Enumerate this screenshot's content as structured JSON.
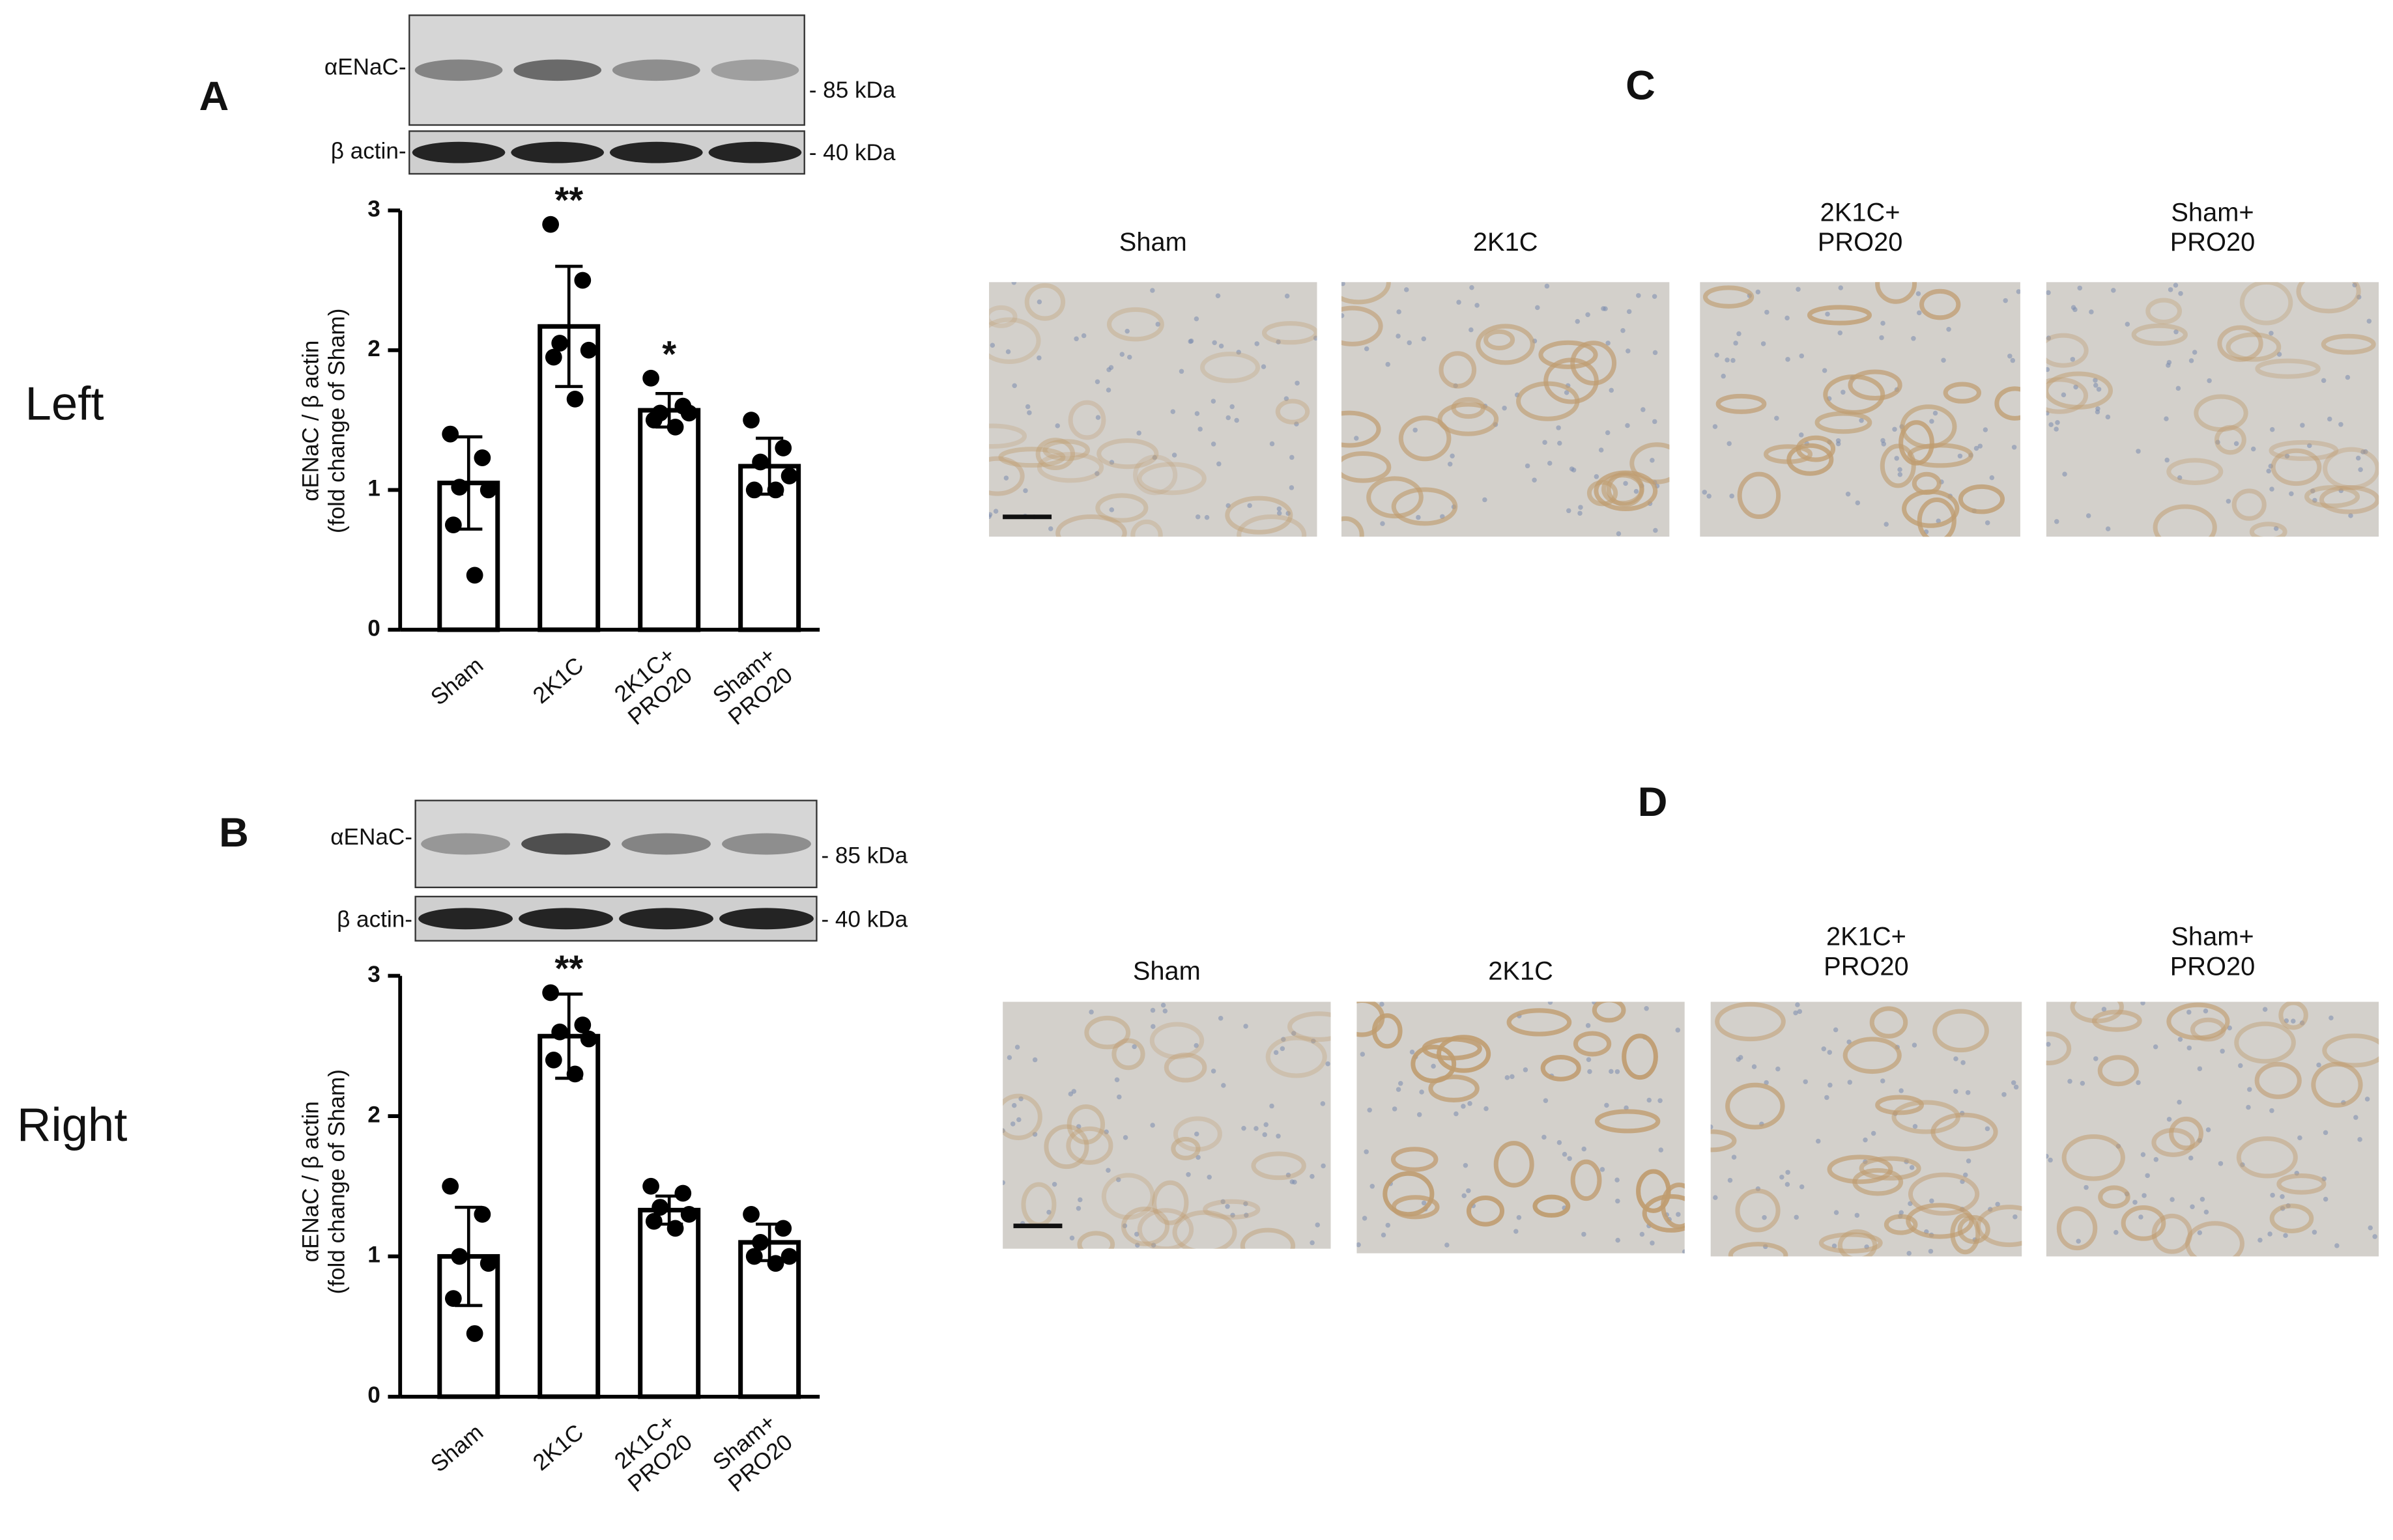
{
  "panel_labels": [
    "A",
    "B",
    "C",
    "D"
  ],
  "side_labels": [
    "Left",
    "Right"
  ],
  "blots": [
    {
      "target": "αENaC-",
      "target_size": "- 85 kDa",
      "control": "β actin-",
      "control_size": "- 40 kDa"
    },
    {
      "target": "αENaC-",
      "target_size": "- 85 kDa",
      "control": "β actin-",
      "control_size": "- 40 kDa"
    }
  ],
  "histology": [
    {
      "labels": [
        "Sham",
        "2K1C",
        "2K1C+\nPRO20",
        "Sham+\nPRO20"
      ]
    },
    {
      "labels": [
        "Sham",
        "2K1C",
        "2K1C+\nPRO20",
        "Sham+\nPRO20"
      ]
    }
  ],
  "chart_data": [
    {
      "type": "bar",
      "y_label": "αENaC / β actin\n(fold change of Sham)",
      "categories": [
        "Sham",
        "2K1C",
        "2K1C+\nPRO20",
        "Sham+\nPRO20"
      ],
      "values": [
        1.05,
        2.17,
        1.57,
        1.17
      ],
      "errors": [
        0.33,
        0.43,
        0.12,
        0.2
      ],
      "points": [
        [
          1.4,
          1.23,
          1.02,
          1.0,
          0.75,
          0.39
        ],
        [
          2.9,
          2.5,
          2.05,
          2.0,
          1.95,
          1.65
        ],
        [
          1.8,
          1.6,
          1.55,
          1.55,
          1.5,
          1.45
        ],
        [
          1.5,
          1.3,
          1.2,
          1.1,
          1.0,
          1.0
        ]
      ],
      "significance": [
        null,
        "**",
        "*",
        null
      ],
      "color": "#ffffff",
      "edge_color": "#000000",
      "ylim": [
        0,
        3
      ],
      "yticks": [
        0,
        1,
        2,
        3
      ],
      "grid": false
    },
    {
      "type": "bar",
      "y_label": "αENaC / β actin\n(fold change of Sham)",
      "categories": [
        "Sham",
        "2K1C",
        "2K1C+\nPRO20",
        "Sham+\nPRO20"
      ],
      "values": [
        1.0,
        2.57,
        1.33,
        1.1
      ],
      "errors": [
        0.35,
        0.3,
        0.1,
        0.13
      ],
      "points": [
        [
          1.5,
          1.3,
          1.0,
          0.95,
          0.7,
          0.45
        ],
        [
          2.88,
          2.65,
          2.6,
          2.55,
          2.4,
          2.3
        ],
        [
          1.5,
          1.45,
          1.35,
          1.3,
          1.25,
          1.2
        ],
        [
          1.3,
          1.2,
          1.1,
          1.0,
          1.0,
          0.95
        ]
      ],
      "significance": [
        null,
        "**",
        null,
        null
      ],
      "color": "#ffffff",
      "edge_color": "#000000",
      "ylim": [
        0,
        3
      ],
      "yticks": [
        0,
        1,
        2,
        3
      ],
      "grid": false
    }
  ]
}
